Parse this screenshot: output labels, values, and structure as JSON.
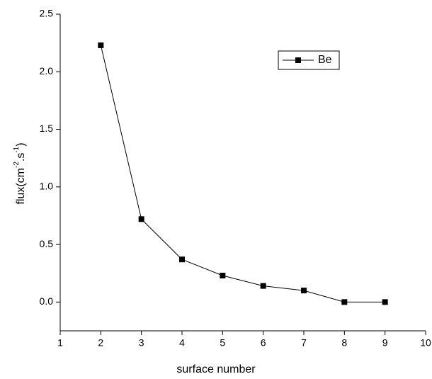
{
  "chart_data": {
    "type": "line",
    "x_label": "surface number",
    "y_label": {
      "base": "flux(cm",
      "exp1": "-2",
      "mid": ".s",
      "exp2": "-1",
      "end": ")"
    },
    "x": [
      2,
      3,
      4,
      5,
      6,
      7,
      8,
      9
    ],
    "series": [
      {
        "name": "Be",
        "color": "#000000",
        "values": [
          2.23,
          0.72,
          0.37,
          0.23,
          0.14,
          0.1,
          0.0,
          0.0
        ]
      }
    ],
    "xlim": [
      1,
      10
    ],
    "xticks": [
      1,
      2,
      3,
      4,
      5,
      6,
      7,
      8,
      9,
      10
    ],
    "ylim": [
      -0.25,
      2.5
    ],
    "yticks": [
      {
        "value": 0,
        "label": "0.0"
      },
      0.5,
      {
        "value": 1,
        "label": "1.0"
      },
      1.5,
      {
        "value": 2,
        "label": "2.0"
      },
      2.5
    ],
    "grid": false,
    "legend": "upper right"
  }
}
